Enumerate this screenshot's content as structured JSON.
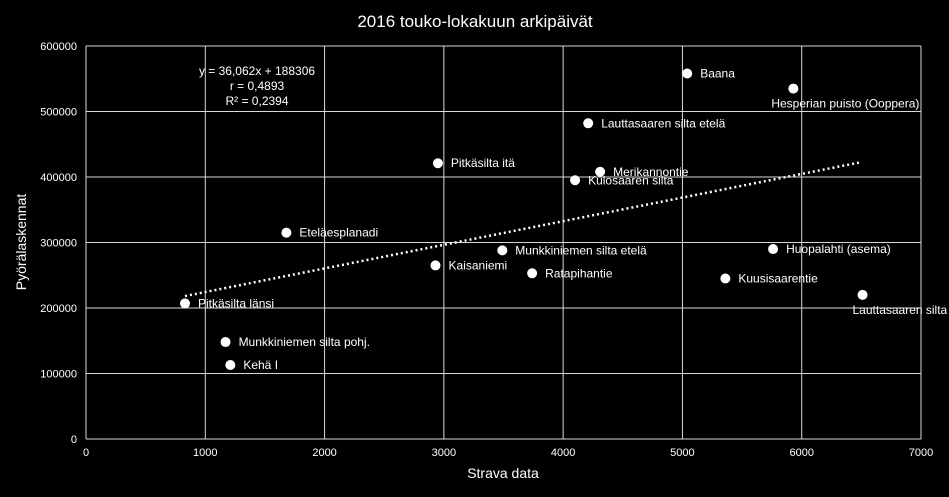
{
  "chart_data": {
    "type": "scatter",
    "title": "2016 touko-lokakuun arkipäivät",
    "xlabel": "Strava data",
    "ylabel": "Pyörälaskennat",
    "xlim": [
      0,
      7000
    ],
    "ylim": [
      0,
      600000
    ],
    "x_ticks": [
      "0",
      "1000",
      "2000",
      "3000",
      "4000",
      "5000",
      "6000",
      "7000"
    ],
    "y_ticks": [
      "0",
      "100000",
      "200000",
      "300000",
      "400000",
      "500000",
      "600000"
    ],
    "grid": true,
    "legend": "none",
    "colors": {
      "background": "#000000",
      "points": "#ffffff",
      "grid": "#d9d9d9",
      "trendline": "#ffffff"
    },
    "trendline": {
      "style": "dotted",
      "slope": 36.062,
      "intercept": 188306,
      "x_range": [
        830,
        6500
      ],
      "equation": "y = 36,062x + 188306",
      "r": "r = 0,4893",
      "r2": "R² = 0,2394"
    },
    "points": [
      {
        "label": "Baana",
        "x": 5040,
        "y": 558000,
        "label_pos": "right"
      },
      {
        "label": "Hesperian puisto (Ooppera)",
        "x": 5930,
        "y": 535000,
        "label_pos": "below"
      },
      {
        "label": "Lauttasaaren silta etelä",
        "x": 4210,
        "y": 482000,
        "label_pos": "right"
      },
      {
        "label": "Pitkäsilta itä",
        "x": 2950,
        "y": 421000,
        "label_pos": "right"
      },
      {
        "label": "Merikannontie",
        "x": 4310,
        "y": 408000,
        "label_pos": "right"
      },
      {
        "label": "Kulosaaren silta",
        "x": 4100,
        "y": 395000,
        "label_pos": "right"
      },
      {
        "label": "Eteläesplanadi",
        "x": 1680,
        "y": 315000,
        "label_pos": "right"
      },
      {
        "label": "Munkkiniemen silta etelä",
        "x": 3490,
        "y": 288000,
        "label_pos": "right"
      },
      {
        "label": "Huopalahti (asema)",
        "x": 5760,
        "y": 290000,
        "label_pos": "right"
      },
      {
        "label": "Kaisaniemi",
        "x": 2930,
        "y": 265000,
        "label_pos": "right"
      },
      {
        "label": "Ratapihantie",
        "x": 3740,
        "y": 253000,
        "label_pos": "right"
      },
      {
        "label": "Kuusisaarentie",
        "x": 5360,
        "y": 245000,
        "label_pos": "right"
      },
      {
        "label": "Lauttasaaren silta pohj.",
        "x": 6510,
        "y": 220000,
        "label_pos": "below"
      },
      {
        "label": "Pitkäsilta länsi",
        "x": 830,
        "y": 207000,
        "label_pos": "right"
      },
      {
        "label": "Munkkiniemen silta pohj.",
        "x": 1170,
        "y": 148000,
        "label_pos": "right"
      },
      {
        "label": "Kehä I",
        "x": 1210,
        "y": 113000,
        "label_pos": "right"
      }
    ]
  }
}
